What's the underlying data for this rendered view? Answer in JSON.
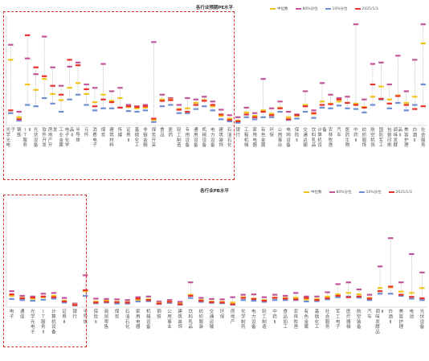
{
  "colors": {
    "median": "#f0c419",
    "p80": "#c0569a",
    "p10": "#6f8fd2",
    "current": "#e8322d",
    "whisker": "#a9a9a9",
    "highlight_border": "#d9302a",
    "axis_text": "#555555"
  },
  "chart_data": [
    {
      "type": "scatter",
      "title": "各行业预期PE水平",
      "legend": [
        "中位数",
        "80%分位",
        "10%分位",
        "2025/1/3"
      ],
      "legend_position": "top-right",
      "grid": false,
      "ylim": [
        0,
        160
      ],
      "categories": [
        "光学光电子",
        "钢铁",
        "IT服务Ⅱ",
        "光伏设备",
        "软件开发",
        "房地产开发",
        "工业金属",
        "电子化学品Ⅱ",
        "半导体",
        "元件",
        "消费电子",
        "煤炭",
        "建筑材料",
        "传媒",
        "证券Ⅱ",
        "基础化工",
        "非银金融",
        "煤炭开采",
        "食品",
        "医药",
        "轻工制造",
        "专用设备",
        "通用设备",
        "机械设备",
        "电力设备",
        "建筑装饰",
        "石油石化",
        "银行",
        "工程机械",
        "家用电器",
        "有色金属",
        "环保",
        "公用事业",
        "电网设备",
        "保险Ⅱ",
        "交通运输",
        "饮料乳品",
        "计算机设备",
        "农林牧渔",
        "汽车",
        "医药生物",
        "中药Ⅱ",
        "纺织服饰",
        "航空机场",
        "国防军工",
        "包装印刷",
        "调味发酵品Ⅱ",
        "美容护理",
        "白酒Ⅱ",
        "社会服务"
      ],
      "series": [
        {
          "name": "中位数",
          "values": [
            96,
            12,
            60,
            52,
            68,
            46,
            37,
            55,
            62,
            46,
            34,
            45,
            36,
            40,
            27,
            25,
            26,
            8,
            38,
            38,
            24,
            25,
            33,
            37,
            28,
            14,
            10,
            7,
            19,
            14,
            22,
            17,
            26,
            12,
            14,
            30,
            17,
            35,
            32,
            35,
            33,
            32,
            27,
            42,
            57,
            38,
            44,
            33,
            42,
            120
          ]
        },
        {
          "name": "80%分位",
          "values": [
            118,
            20,
            98,
            75,
            130,
            85,
            58,
            86,
            92,
            60,
            55,
            90,
            50,
            55,
            30,
            28,
            30,
            122,
            45,
            40,
            30,
            40,
            38,
            42,
            35,
            23,
            15,
            12,
            26,
            18,
            68,
            25,
            35,
            20,
            16,
            50,
            22,
            62,
            45,
            40,
            42,
            148,
            38,
            90,
            92,
            60,
            102,
            50,
            96,
            148
          ]
        },
        {
          "name": "10%分位",
          "values": [
            18,
            7,
            30,
            28,
            40,
            32,
            20,
            38,
            45,
            30,
            22,
            25,
            25,
            26,
            21,
            20,
            22,
            5,
            28,
            30,
            18,
            18,
            24,
            28,
            22,
            9,
            6,
            4,
            12,
            9,
            12,
            12,
            20,
            8,
            10,
            20,
            11,
            26,
            25,
            29,
            25,
            24,
            19,
            30,
            38,
            25,
            33,
            22,
            30,
            60
          ]
        },
        {
          "name": "2025/1/3",
          "values": [
            22,
            9,
            132,
            85,
            72,
            58,
            45,
            96,
            88,
            53,
            28,
            38,
            34,
            26,
            28,
            27,
            28,
            10,
            36,
            37,
            23,
            20,
            30,
            36,
            30,
            16,
            8,
            6,
            16,
            12,
            20,
            15,
            25,
            9,
            15,
            28,
            18,
            30,
            31,
            38,
            33,
            30,
            26,
            60,
            39,
            32,
            43,
            30,
            24,
            28
          ]
        }
      ]
    },
    {
      "type": "scatter",
      "title": "各行业PB水平",
      "legend": [
        "中位数",
        "80%分位",
        "10%分位",
        "2025/1/3"
      ],
      "legend_position": "top-right",
      "grid": false,
      "ylim": [
        0,
        30
      ],
      "categories": [
        "电子",
        "通信",
        "光学光电子",
        "IT服务Ⅱ",
        "计算机设备",
        "证券Ⅱ",
        "银行",
        "半导体",
        "保险Ⅱ",
        "商贸零售",
        "煤炭",
        "石油石化",
        "家用电器",
        "机械设备",
        "钢铁",
        "公用事业",
        "建筑装饰",
        "饮料乳品",
        "纺织服装",
        "交通运输",
        "环保",
        "房地产",
        "化学制药",
        "电力设备",
        "轻工制造",
        "中药Ⅱ",
        "食品加工",
        "农林牧渔",
        "有色金属",
        "基础化工",
        "社会服务",
        "军工电子",
        "医疗器械",
        "航空装备",
        "汽车",
        "调味发酵品Ⅱ",
        "白酒Ⅱ",
        "美容护理",
        "电池",
        "光伏设备"
      ],
      "series": [
        {
          "name": "中位数",
          "values": [
            3.2,
            2.6,
            2.4,
            2.8,
            3.2,
            1.8,
            0.7,
            4.5,
            1.6,
            1.8,
            1.5,
            1.4,
            2.1,
            2.2,
            1.2,
            1.6,
            1.0,
            3.5,
            2.0,
            1.6,
            1.5,
            1.3,
            2.8,
            2.4,
            2.0,
            2.7,
            2.6,
            2.7,
            2.2,
            2.3,
            3.0,
            3.6,
            4.0,
            3.6,
            2.6,
            5.4,
            5.6,
            4.4,
            4.0,
            5.4
          ]
        },
        {
          "name": "80%分位",
          "values": [
            4.5,
            3.2,
            3.0,
            3.8,
            4.0,
            2.6,
            1.0,
            9.0,
            2.4,
            2.3,
            2.2,
            2.0,
            2.8,
            3.0,
            1.6,
            2.0,
            1.5,
            7.0,
            2.6,
            2.3,
            2.2,
            2.8,
            3.5,
            3.6,
            2.8,
            3.5,
            3.2,
            4.0,
            3.0,
            3.0,
            4.2,
            6.5,
            7.0,
            5.0,
            3.5,
            11.5,
            19.5,
            7.0,
            15.0,
            9.8
          ]
        },
        {
          "name": "10%分位",
          "values": [
            2.3,
            2.0,
            1.8,
            2.1,
            2.4,
            1.3,
            0.5,
            3.2,
            1.1,
            1.3,
            1.0,
            1.0,
            1.6,
            1.7,
            0.9,
            1.2,
            0.7,
            2.6,
            1.5,
            1.2,
            1.1,
            0.7,
            2.0,
            1.8,
            1.5,
            2.0,
            2.0,
            2.0,
            1.6,
            1.7,
            2.2,
            2.8,
            3.0,
            2.7,
            2.0,
            3.8,
            3.8,
            3.2,
            2.4,
            2.0
          ]
        },
        {
          "name": "2025/1/3",
          "values": [
            3.6,
            2.5,
            2.7,
            3.0,
            2.8,
            1.6,
            0.6,
            4.8,
            1.3,
            1.5,
            1.4,
            1.3,
            2.4,
            2.0,
            1.0,
            1.5,
            0.8,
            3.2,
            1.8,
            1.4,
            1.3,
            0.8,
            2.6,
            2.3,
            1.8,
            2.6,
            2.4,
            2.2,
            2.6,
            2.0,
            2.5,
            3.2,
            2.8,
            3.0,
            2.4,
            4.5,
            5.8,
            3.5,
            2.9,
            2.5
          ]
        }
      ]
    }
  ]
}
